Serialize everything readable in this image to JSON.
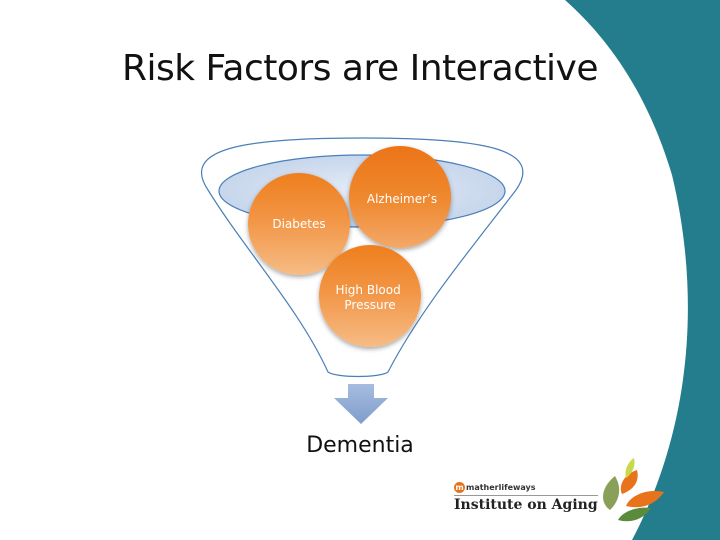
{
  "slide": {
    "title": "Risk Factors are Interactive",
    "output": "Dementia"
  },
  "factors": [
    {
      "label": "Diabetes"
    },
    {
      "label": "Alzheimer’s"
    },
    {
      "label": [
        "High Blood",
        "Pressure"
      ]
    }
  ],
  "logo": {
    "brand": "matherlifeways",
    "name": "Institute on Aging"
  },
  "colors": {
    "accent_teal": "#237d8c",
    "circle_orange_top": "#f08a2a",
    "circle_orange_bottom": "#f5b77b",
    "funnel_line": "#4a7fb9",
    "arrow": "#8ea9d1"
  }
}
